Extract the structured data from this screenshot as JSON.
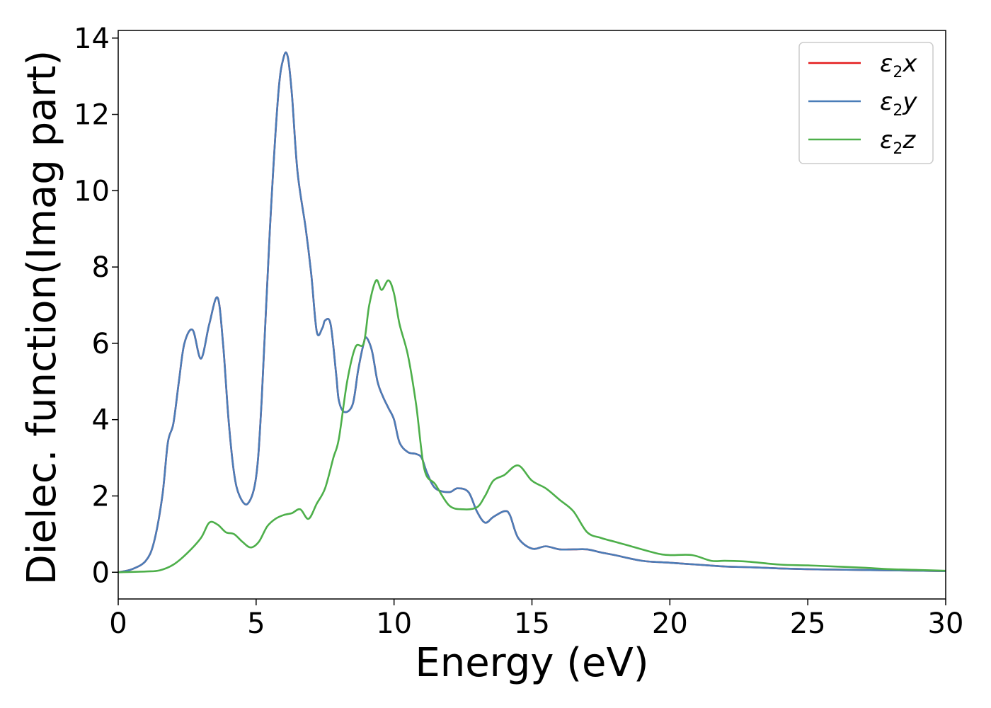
{
  "chart_data": {
    "type": "line",
    "title": "",
    "xlabel": "Energy (eV)",
    "ylabel": "Dielec. function(Imag part)",
    "xlim": [
      0,
      30
    ],
    "ylim": [
      -0.7,
      14.2
    ],
    "xticks": [
      0,
      5,
      10,
      15,
      20,
      25,
      30
    ],
    "yticks": [
      0,
      2,
      4,
      6,
      8,
      10,
      12,
      14
    ],
    "grid": false,
    "legend_position": "top-right",
    "series": [
      {
        "name": "ε2x",
        "label_base": "ε",
        "label_sub": "2",
        "label_tail": "x",
        "color": "#e41a1c",
        "x": [
          0,
          0.5,
          1.0,
          1.3,
          1.6,
          1.8,
          2.0,
          2.2,
          2.4,
          2.7,
          3.0,
          3.3,
          3.6,
          3.8,
          4.0,
          4.2,
          4.4,
          4.7,
          5.0,
          5.2,
          5.5,
          5.8,
          6.0,
          6.15,
          6.3,
          6.5,
          6.8,
          7.0,
          7.2,
          7.4,
          7.5,
          7.7,
          7.9,
          8.0,
          8.2,
          8.5,
          8.7,
          8.9,
          9.0,
          9.2,
          9.4,
          9.6,
          9.8,
          10.0,
          10.2,
          10.5,
          10.8,
          11.0,
          11.2,
          11.5,
          12.0,
          12.3,
          12.7,
          13.0,
          13.3,
          13.6,
          14.0,
          14.2,
          14.5,
          15.0,
          15.5,
          16.0,
          16.5,
          17.0,
          17.5,
          18.0,
          19.0,
          20.0,
          21.0,
          22.0,
          23.0,
          24.0,
          25.0,
          26.0,
          27.0,
          28.0,
          29.0,
          30.0
        ],
        "y": [
          0.0,
          0.08,
          0.3,
          0.8,
          2.0,
          3.4,
          3.9,
          5.0,
          6.0,
          6.35,
          5.6,
          6.5,
          7.2,
          6.0,
          4.0,
          2.6,
          2.0,
          1.8,
          2.5,
          4.5,
          9.0,
          12.5,
          13.5,
          13.5,
          12.5,
          10.5,
          9.0,
          7.8,
          6.3,
          6.4,
          6.6,
          6.5,
          5.2,
          4.5,
          4.2,
          4.4,
          5.3,
          6.0,
          6.15,
          5.8,
          5.0,
          4.6,
          4.3,
          4.0,
          3.4,
          3.15,
          3.1,
          3.0,
          2.6,
          2.2,
          2.1,
          2.2,
          2.1,
          1.6,
          1.3,
          1.45,
          1.6,
          1.5,
          0.9,
          0.62,
          0.68,
          0.6,
          0.6,
          0.6,
          0.52,
          0.45,
          0.3,
          0.25,
          0.2,
          0.15,
          0.13,
          0.1,
          0.08,
          0.07,
          0.06,
          0.05,
          0.04,
          0.03
        ]
      },
      {
        "name": "ε2y",
        "label_base": "ε",
        "label_sub": "2",
        "label_tail": "y",
        "color": "#4a7db8",
        "x": [
          0,
          0.5,
          1.0,
          1.3,
          1.6,
          1.8,
          2.0,
          2.2,
          2.4,
          2.7,
          3.0,
          3.3,
          3.6,
          3.8,
          4.0,
          4.2,
          4.4,
          4.7,
          5.0,
          5.2,
          5.5,
          5.8,
          6.0,
          6.15,
          6.3,
          6.5,
          6.8,
          7.0,
          7.2,
          7.4,
          7.5,
          7.7,
          7.9,
          8.0,
          8.2,
          8.5,
          8.7,
          8.9,
          9.0,
          9.2,
          9.4,
          9.6,
          9.8,
          10.0,
          10.2,
          10.5,
          10.8,
          11.0,
          11.2,
          11.5,
          12.0,
          12.3,
          12.7,
          13.0,
          13.3,
          13.6,
          14.0,
          14.2,
          14.5,
          15.0,
          15.5,
          16.0,
          16.5,
          17.0,
          17.5,
          18.0,
          19.0,
          20.0,
          21.0,
          22.0,
          23.0,
          24.0,
          25.0,
          26.0,
          27.0,
          28.0,
          29.0,
          30.0
        ],
        "y": [
          0.0,
          0.08,
          0.3,
          0.8,
          2.0,
          3.4,
          3.9,
          5.0,
          6.0,
          6.35,
          5.6,
          6.5,
          7.2,
          6.0,
          4.0,
          2.6,
          2.0,
          1.8,
          2.5,
          4.5,
          9.0,
          12.5,
          13.5,
          13.5,
          12.5,
          10.5,
          9.0,
          7.8,
          6.3,
          6.4,
          6.6,
          6.5,
          5.2,
          4.5,
          4.2,
          4.4,
          5.3,
          6.0,
          6.15,
          5.8,
          5.0,
          4.6,
          4.3,
          4.0,
          3.4,
          3.15,
          3.1,
          3.0,
          2.6,
          2.2,
          2.1,
          2.2,
          2.1,
          1.6,
          1.3,
          1.45,
          1.6,
          1.5,
          0.9,
          0.62,
          0.68,
          0.6,
          0.6,
          0.6,
          0.52,
          0.45,
          0.3,
          0.25,
          0.2,
          0.15,
          0.13,
          0.1,
          0.08,
          0.07,
          0.06,
          0.05,
          0.04,
          0.03
        ]
      },
      {
        "name": "ε2z",
        "label_base": "ε",
        "label_sub": "2",
        "label_tail": "z",
        "color": "#4daf4a",
        "x": [
          0,
          1.0,
          1.5,
          2.0,
          2.5,
          3.0,
          3.3,
          3.6,
          3.9,
          4.2,
          4.5,
          4.8,
          5.1,
          5.4,
          5.7,
          6.0,
          6.3,
          6.6,
          6.9,
          7.2,
          7.5,
          7.8,
          8.0,
          8.3,
          8.6,
          8.9,
          9.1,
          9.35,
          9.55,
          9.8,
          10.0,
          10.2,
          10.5,
          10.8,
          11.1,
          11.5,
          12.0,
          12.5,
          13.0,
          13.3,
          13.6,
          14.0,
          14.5,
          15.0,
          15.5,
          16.0,
          16.5,
          17.0,
          17.5,
          18.0,
          18.5,
          19.5,
          20.0,
          20.8,
          21.5,
          22.0,
          22.8,
          24.0,
          25.0,
          26.0,
          27.0,
          28.0,
          29.0,
          30.0
        ],
        "y": [
          0.0,
          0.02,
          0.05,
          0.2,
          0.5,
          0.9,
          1.3,
          1.25,
          1.05,
          1.0,
          0.8,
          0.65,
          0.8,
          1.2,
          1.4,
          1.5,
          1.55,
          1.65,
          1.4,
          1.8,
          2.2,
          3.0,
          3.5,
          5.0,
          5.9,
          6.0,
          7.0,
          7.65,
          7.4,
          7.65,
          7.3,
          6.5,
          5.7,
          4.4,
          2.7,
          2.3,
          1.75,
          1.65,
          1.7,
          2.0,
          2.4,
          2.55,
          2.8,
          2.4,
          2.2,
          1.9,
          1.6,
          1.05,
          0.9,
          0.8,
          0.7,
          0.5,
          0.45,
          0.45,
          0.3,
          0.3,
          0.28,
          0.2,
          0.18,
          0.15,
          0.12,
          0.08,
          0.06,
          0.04
        ]
      }
    ]
  }
}
